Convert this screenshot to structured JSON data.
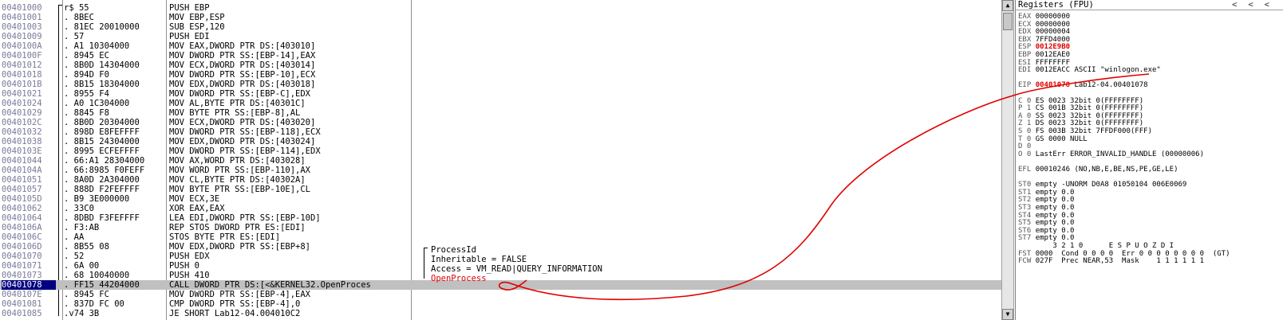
{
  "disassembly": {
    "rows": [
      {
        "addr": "00401000",
        "bytes": "r$ 55",
        "instr": "PUSH EBP"
      },
      {
        "addr": "00401001",
        "bytes": ". 8BEC",
        "instr": "MOV EBP,ESP"
      },
      {
        "addr": "00401003",
        "bytes": ". 81EC 20010000",
        "instr": "SUB ESP,120"
      },
      {
        "addr": "00401009",
        "bytes": ". 57",
        "instr": "PUSH EDI"
      },
      {
        "addr": "0040100A",
        "bytes": ". A1 10304000",
        "instr": "MOV EAX,DWORD PTR DS:[403010]"
      },
      {
        "addr": "0040100F",
        "bytes": ". 8945 EC",
        "instr": "MOV DWORD PTR SS:[EBP-14],EAX"
      },
      {
        "addr": "00401012",
        "bytes": ". 8B0D 14304000",
        "instr": "MOV ECX,DWORD PTR DS:[403014]"
      },
      {
        "addr": "00401018",
        "bytes": ". 894D F0",
        "instr": "MOV DWORD PTR SS:[EBP-10],ECX"
      },
      {
        "addr": "0040101B",
        "bytes": ". 8B15 18304000",
        "instr": "MOV EDX,DWORD PTR DS:[403018]"
      },
      {
        "addr": "00401021",
        "bytes": ". 8955 F4",
        "instr": "MOV DWORD PTR SS:[EBP-C],EDX"
      },
      {
        "addr": "00401024",
        "bytes": ". A0 1C304000",
        "instr": "MOV AL,BYTE PTR DS:[40301C]"
      },
      {
        "addr": "00401029",
        "bytes": ". 8845 F8",
        "instr": "MOV BYTE PTR SS:[EBP-8],AL"
      },
      {
        "addr": "0040102C",
        "bytes": ". 8B0D 20304000",
        "instr": "MOV ECX,DWORD PTR DS:[403020]"
      },
      {
        "addr": "00401032",
        "bytes": ". 898D E8FEFFFF",
        "instr": "MOV DWORD PTR SS:[EBP-118],ECX"
      },
      {
        "addr": "00401038",
        "bytes": ". 8B15 24304000",
        "instr": "MOV EDX,DWORD PTR DS:[403024]"
      },
      {
        "addr": "0040103E",
        "bytes": ". 8995 ECFEFFFF",
        "instr": "MOV DWORD PTR SS:[EBP-114],EDX"
      },
      {
        "addr": "00401044",
        "bytes": ". 66:A1 28304000",
        "instr": "MOV AX,WORD PTR DS:[403028]"
      },
      {
        "addr": "0040104A",
        "bytes": ". 66:8985 F0FEFF",
        "instr": "MOV WORD PTR SS:[EBP-110],AX"
      },
      {
        "addr": "00401051",
        "bytes": ". 8A0D 2A304000",
        "instr": "MOV CL,BYTE PTR DS:[40302A]"
      },
      {
        "addr": "00401057",
        "bytes": ". 888D F2FEFFFF",
        "instr": "MOV BYTE PTR SS:[EBP-10E],CL"
      },
      {
        "addr": "0040105D",
        "bytes": ". B9 3E000000",
        "instr": "MOV ECX,3E"
      },
      {
        "addr": "00401062",
        "bytes": ". 33C0",
        "instr": "XOR EAX,EAX"
      },
      {
        "addr": "00401064",
        "bytes": ". 8DBD F3FEFFFF",
        "instr": "LEA EDI,DWORD PTR SS:[EBP-10D]"
      },
      {
        "addr": "0040106A",
        "bytes": ". F3:AB",
        "instr": "REP STOS DWORD PTR ES:[EDI]"
      },
      {
        "addr": "0040106C",
        "bytes": ". AA",
        "instr": "STOS BYTE PTR ES:[EDI]"
      },
      {
        "addr": "0040106D",
        "bytes": ". 8B55 08",
        "instr": "MOV EDX,DWORD PTR SS:[EBP+8]"
      },
      {
        "addr": "00401070",
        "bytes": ". 52",
        "instr": "PUSH EDX"
      },
      {
        "addr": "00401071",
        "bytes": ". 6A 00",
        "instr": "PUSH 0"
      },
      {
        "addr": "00401073",
        "bytes": ". 68 10040000",
        "instr": "PUSH 410"
      },
      {
        "addr": "00401078",
        "bytes": ". FF15 44204000",
        "instr": "CALL DWORD PTR DS:[<&KERNEL32.OpenProces"
      },
      {
        "addr": "0040107E",
        "bytes": ". 8945 FC",
        "instr": "MOV DWORD PTR SS:[EBP-4],EAX"
      },
      {
        "addr": "00401081",
        "bytes": ". 837D FC 00",
        "instr": "CMP DWORD PTR SS:[EBP-4],0"
      },
      {
        "addr": "00401085",
        "bytes": ".v74 3B",
        "instr": "JE SHORT Lab12-04.004010C2"
      }
    ],
    "comments": {
      "c26": "ProcessId",
      "c27": "Inheritable = FALSE",
      "c28": "Access = VM_READ|QUERY_INFORMATION",
      "c29": "OpenProcess"
    }
  },
  "registers": {
    "title": "Registers (FPU)",
    "nav": [
      "<",
      "<",
      "<"
    ],
    "lines": [
      {
        "k": "EAX",
        "v": "00000000"
      },
      {
        "k": "ECX",
        "v": "00000000"
      },
      {
        "k": "EDX",
        "v": "00000004"
      },
      {
        "k": "EBX",
        "v": "7FFD4000"
      },
      {
        "k": "ESP",
        "v": "0012E9B0",
        "red": true
      },
      {
        "k": "EBP",
        "v": "0012EAE0"
      },
      {
        "k": "ESI",
        "v": "FFFFFFFF"
      },
      {
        "k": "EDI",
        "v": "0012EACC ASCII \"winlogon.exe\""
      },
      {
        "k": "",
        "v": ""
      },
      {
        "k": "EIP",
        "v": "00401078",
        "red": true,
        "extra": " Lab12-04.00401078"
      },
      {
        "k": "",
        "v": ""
      },
      {
        "k": "C 0",
        "v": "ES 0023 32bit 0(FFFFFFFF)"
      },
      {
        "k": "P 1",
        "v": "CS 001B 32bit 0(FFFFFFFF)"
      },
      {
        "k": "A 0",
        "v": "SS 0023 32bit 0(FFFFFFFF)"
      },
      {
        "k": "Z 1",
        "v": "DS 0023 32bit 0(FFFFFFFF)"
      },
      {
        "k": "S 0",
        "v": "FS 003B 32bit 7FFDF000(FFF)"
      },
      {
        "k": "T 0",
        "v": "GS 0000 NULL"
      },
      {
        "k": "D 0",
        "v": ""
      },
      {
        "k": "O 0",
        "v": "LastErr ERROR_INVALID_HANDLE (00000006)"
      },
      {
        "k": "",
        "v": ""
      },
      {
        "k": "EFL",
        "v": "00010246 (NO,NB,E,BE,NS,PE,GE,LE)"
      },
      {
        "k": "",
        "v": ""
      },
      {
        "k": "ST0",
        "v": "empty -UNORM D0A8 01050104 006E0069"
      },
      {
        "k": "ST1",
        "v": "empty 0.0"
      },
      {
        "k": "ST2",
        "v": "empty 0.0"
      },
      {
        "k": "ST3",
        "v": "empty 0.0"
      },
      {
        "k": "ST4",
        "v": "empty 0.0"
      },
      {
        "k": "ST5",
        "v": "empty 0.0"
      },
      {
        "k": "ST6",
        "v": "empty 0.0"
      },
      {
        "k": "ST7",
        "v": "empty 0.0"
      },
      {
        "k": "",
        "v": "       3 2 1 0      E S P U O Z D I"
      },
      {
        "k": "FST",
        "v": "0000  Cond 0 0 0 0  Err 0 0 0 0 0 0 0 0  (GT)"
      },
      {
        "k": "FCW",
        "v": "027F  Prec NEAR,53  Mask    1 1 1 1 1 1"
      }
    ]
  },
  "colors": {
    "highlight": "#e00000",
    "selected_addr_bg": "#000080",
    "selected_row_bg": "#c0c0c0"
  }
}
